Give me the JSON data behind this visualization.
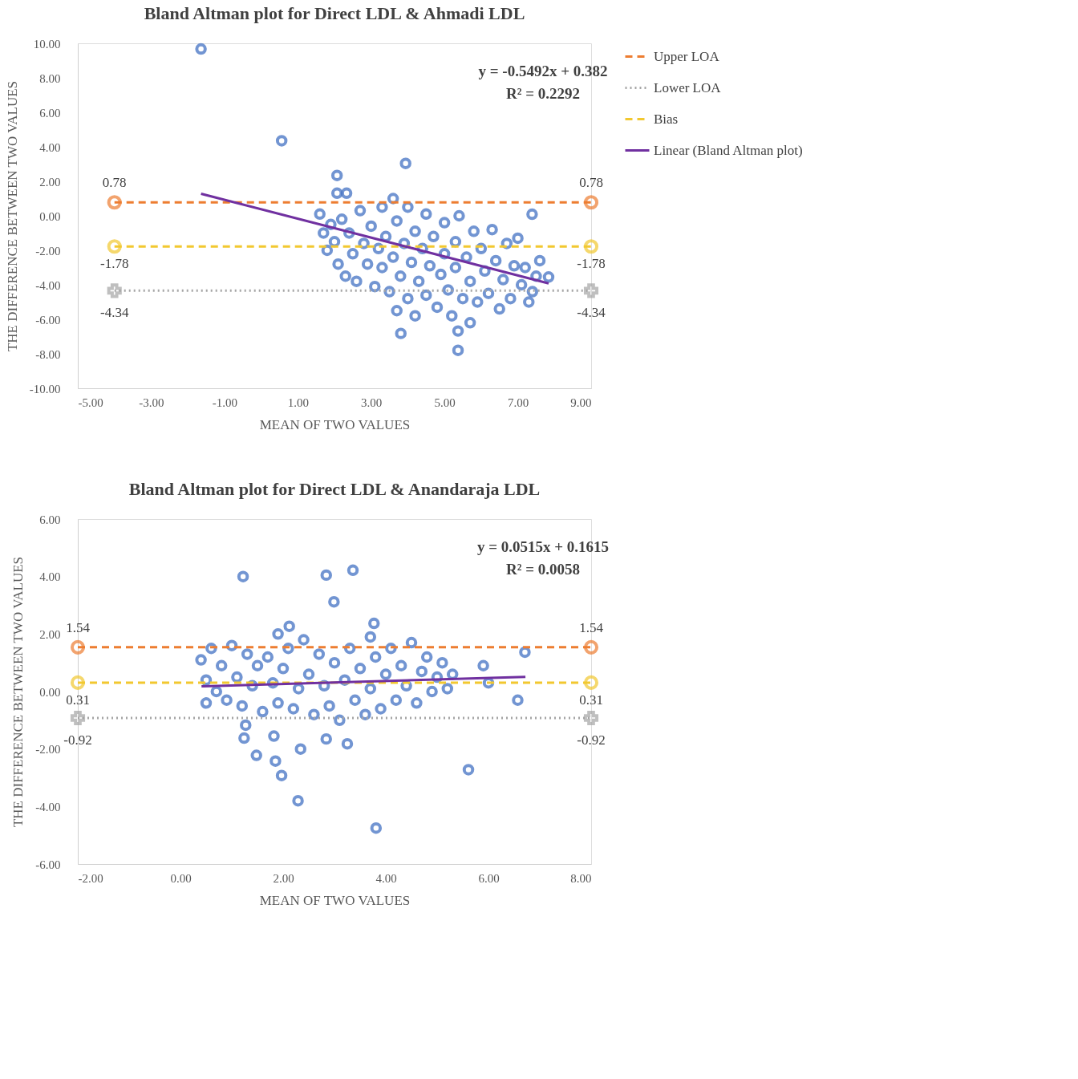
{
  "chart_data": [
    {
      "type": "scatter",
      "title": "Bland Altman plot for Direct LDL & Ahmadi LDL",
      "xlabel": "MEAN OF TWO VALUES",
      "ylabel": "THE DIFFERENCE BETWEEN TWO VALUES",
      "xlim": [
        -5,
        9
      ],
      "ylim": [
        -10,
        10
      ],
      "xticks": [
        {
          "value": -5,
          "label": "-5.00"
        },
        {
          "value": -3,
          "label": "-3.00"
        },
        {
          "value": -1,
          "label": "-1.00"
        },
        {
          "value": 1,
          "label": "1.00"
        },
        {
          "value": 3,
          "label": "3.00"
        },
        {
          "value": 5,
          "label": "5.00"
        },
        {
          "value": 7,
          "label": "7.00"
        },
        {
          "value": 9,
          "label": "9.00"
        }
      ],
      "yticks": [
        {
          "value": -10,
          "label": "-10.00"
        },
        {
          "value": -8,
          "label": "-8.00"
        },
        {
          "value": -6,
          "label": "-6.00"
        },
        {
          "value": -4,
          "label": "-4.00"
        },
        {
          "value": -2,
          "label": "-2.00"
        },
        {
          "value": 0,
          "label": "0.00"
        },
        {
          "value": 2,
          "label": "2.00"
        },
        {
          "value": 4,
          "label": "4.00"
        },
        {
          "value": 6,
          "label": "6.00"
        },
        {
          "value": 8,
          "label": "8.00"
        },
        {
          "value": 10,
          "label": "10.00"
        }
      ],
      "grid": false,
      "legend": "right",
      "annotations": [
        "y = -0.5492x + 0.382",
        "R² = 0.2292"
      ],
      "series": [
        {
          "color": "#4472c4",
          "marker": "circle",
          "x": [
            -1.64,
            0.56,
            2.07,
            3.94,
            2.07,
            2.33,
            7.39,
            5.37,
            3.81,
            5.37,
            7.84,
            1.6,
            1.7,
            1.8,
            1.9,
            2.0,
            2.1,
            2.2,
            2.3,
            2.4,
            2.5,
            2.6,
            2.7,
            2.8,
            2.9,
            3.0,
            3.1,
            3.2,
            3.3,
            3.3,
            3.4,
            3.5,
            3.6,
            3.6,
            3.7,
            3.7,
            3.8,
            3.9,
            4.0,
            4.0,
            4.1,
            4.2,
            4.2,
            4.3,
            4.4,
            4.5,
            4.5,
            4.6,
            4.7,
            4.8,
            4.9,
            5.0,
            5.0,
            5.1,
            5.2,
            5.3,
            5.3,
            5.4,
            5.5,
            5.6,
            5.7,
            5.7,
            5.8,
            5.9,
            6.0,
            6.1,
            6.2,
            6.3,
            6.4,
            6.5,
            6.6,
            6.7,
            6.8,
            6.9,
            7.0,
            7.1,
            7.2,
            7.3,
            7.4,
            7.5,
            7.6
          ],
          "values": [
            9.67,
            4.35,
            2.34,
            3.04,
            1.31,
            1.31,
            0.09,
            -7.8,
            -6.82,
            -6.68,
            -3.55,
            0.1,
            -1.0,
            -2.0,
            -0.5,
            -1.5,
            -2.8,
            -0.2,
            -3.5,
            -1.0,
            -2.2,
            -3.8,
            0.3,
            -1.6,
            -2.8,
            -0.6,
            -4.1,
            -1.9,
            0.5,
            -3.0,
            -1.2,
            -4.4,
            -2.4,
            1.0,
            -0.3,
            -5.5,
            -3.5,
            -1.6,
            0.5,
            -4.8,
            -2.7,
            -0.9,
            -5.8,
            -3.8,
            -1.9,
            0.1,
            -4.6,
            -2.9,
            -1.2,
            -5.3,
            -3.4,
            -0.4,
            -2.2,
            -4.3,
            -5.8,
            -1.5,
            -3.0,
            0.0,
            -4.8,
            -2.4,
            -3.8,
            -6.2,
            -0.9,
            -5.0,
            -1.9,
            -3.2,
            -4.5,
            -0.8,
            -2.6,
            -5.4,
            -3.7,
            -1.6,
            -4.8,
            -2.9,
            -1.3,
            -4.0,
            -3.0,
            -5.0,
            -4.4,
            -3.5,
            -2.6
          ]
        },
        {
          "name": "Upper LOA",
          "type": "line",
          "color": "#ed7d31",
          "line_style": "dashed",
          "marker": "circle",
          "x": [
            -4,
            9
          ],
          "values": [
            0.78,
            0.78
          ],
          "value_labels": [
            "0.78",
            "0.78"
          ]
        },
        {
          "name": "Lower LOA",
          "type": "line",
          "color": "#a5a5a5",
          "line_style": "dotted",
          "marker": "cross",
          "x": [
            -4,
            9
          ],
          "values": [
            -4.34,
            -4.34
          ],
          "value_labels": [
            "-4.34",
            "-4.34"
          ]
        },
        {
          "name": "Bias",
          "type": "line",
          "color": "#f2c830",
          "line_style": "dashed",
          "marker": "circle",
          "x": [
            -4,
            9
          ],
          "values": [
            -1.78,
            -1.78
          ],
          "value_labels": [
            "-1.78",
            "-1.78"
          ]
        },
        {
          "name": "Linear (Bland Altman plot)",
          "type": "line",
          "color": "#7030a0",
          "line_style": "solid",
          "marker": "none",
          "x": [
            -1.64,
            7.84
          ],
          "values": [
            1.28,
            -3.92
          ]
        }
      ]
    },
    {
      "type": "scatter",
      "title": "Bland Altman plot for Direct LDL & Anandaraja LDL",
      "xlabel": "MEAN OF TWO VALUES",
      "ylabel": "THE DIFFERENCE BETWEEN TWO VALUES",
      "xlim": [
        -2,
        8
      ],
      "ylim": [
        -6,
        6
      ],
      "xticks": [
        {
          "value": -2,
          "label": "-2.00"
        },
        {
          "value": 0,
          "label": "0.00"
        },
        {
          "value": 2,
          "label": "2.00"
        },
        {
          "value": 4,
          "label": "4.00"
        },
        {
          "value": 6,
          "label": "6.00"
        },
        {
          "value": 8,
          "label": "8.00"
        }
      ],
      "yticks": [
        {
          "value": -6,
          "label": "-6.00"
        },
        {
          "value": -4,
          "label": "-4.00"
        },
        {
          "value": -2,
          "label": "-2.00"
        },
        {
          "value": 0,
          "label": "0.00"
        },
        {
          "value": 2,
          "label": "2.00"
        },
        {
          "value": 4,
          "label": "4.00"
        },
        {
          "value": 6,
          "label": "6.00"
        }
      ],
      "grid": false,
      "legend": "right",
      "annotations": [
        "y = 0.0515x + 0.1615",
        "R² = 0.0058"
      ],
      "series": [
        {
          "color": "#4472c4",
          "marker": "circle",
          "x": [
            1.22,
            2.84,
            3.36,
            2.99,
            3.77,
            2.12,
            6.57,
            6.71,
            5.61,
            3.81,
            2.29,
            1.97,
            1.24,
            2.34,
            3.25,
            2.84,
            1.48,
            1.82,
            1.85,
            1.27,
            0.4,
            0.5,
            0.5,
            0.6,
            0.7,
            0.8,
            0.9,
            1.0,
            1.1,
            1.2,
            1.3,
            1.4,
            1.5,
            1.6,
            1.7,
            1.8,
            1.9,
            1.9,
            2.0,
            2.1,
            2.2,
            2.3,
            2.4,
            2.5,
            2.6,
            2.7,
            2.8,
            2.9,
            3.0,
            3.1,
            3.2,
            3.3,
            3.4,
            3.5,
            3.6,
            3.7,
            3.7,
            3.8,
            3.9,
            4.0,
            4.1,
            4.2,
            4.3,
            4.4,
            4.5,
            4.6,
            4.7,
            4.8,
            4.9,
            5.0,
            5.1,
            5.2,
            5.3,
            5.9,
            6.0
          ],
          "values": [
            4.0,
            4.05,
            4.22,
            3.12,
            2.37,
            2.27,
            -0.3,
            1.37,
            -2.72,
            -4.75,
            -3.8,
            -2.92,
            -1.62,
            -2.0,
            -1.82,
            -1.65,
            -2.22,
            -1.55,
            -2.42,
            -1.17,
            1.1,
            0.4,
            -0.4,
            1.5,
            0.0,
            0.9,
            -0.3,
            1.6,
            0.5,
            -0.5,
            1.3,
            0.2,
            0.9,
            -0.7,
            1.2,
            0.3,
            2.0,
            -0.4,
            0.8,
            1.5,
            -0.6,
            0.1,
            1.8,
            0.6,
            -0.8,
            1.3,
            0.2,
            -0.5,
            1.0,
            -1.0,
            0.4,
            1.5,
            -0.3,
            0.8,
            -0.8,
            1.9,
            0.1,
            1.2,
            -0.6,
            0.6,
            1.5,
            -0.3,
            0.9,
            0.2,
            1.7,
            -0.4,
            0.7,
            1.2,
            0.0,
            0.5,
            1.0,
            0.1,
            0.6,
            0.9,
            0.3
          ]
        },
        {
          "name": "Upper LOA",
          "type": "line",
          "color": "#ed7d31",
          "line_style": "dashed",
          "marker": "circle",
          "x": [
            -2,
            8
          ],
          "values": [
            1.54,
            1.54
          ],
          "value_labels": [
            "1.54",
            "1.54"
          ]
        },
        {
          "name": "Lower LOA",
          "type": "line",
          "color": "#a5a5a5",
          "line_style": "dotted",
          "marker": "cross",
          "x": [
            -2,
            8
          ],
          "values": [
            -0.92,
            -0.92
          ],
          "value_labels": [
            "-0.92",
            "-0.92"
          ]
        },
        {
          "name": "Bias",
          "type": "line",
          "color": "#f2c830",
          "line_style": "dashed",
          "marker": "circle",
          "x": [
            -2,
            8
          ],
          "values": [
            0.31,
            0.31
          ],
          "value_labels": [
            "0.31",
            "0.31"
          ]
        },
        {
          "name": "Linear (Bland Altman plot)",
          "type": "line",
          "color": "#7030a0",
          "line_style": "solid",
          "marker": "none",
          "x": [
            0.41,
            6.72
          ],
          "values": [
            0.18,
            0.51
          ]
        }
      ]
    }
  ]
}
